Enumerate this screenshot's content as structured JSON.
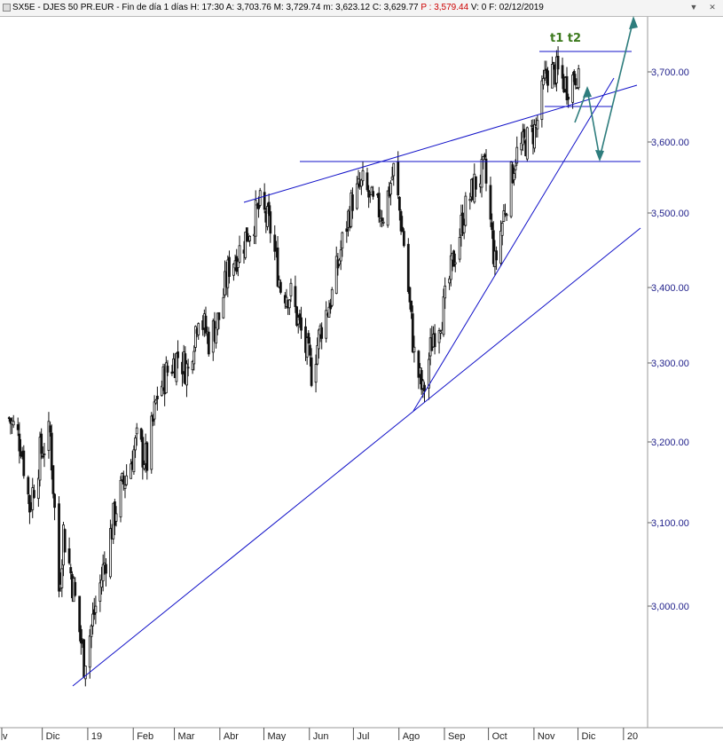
{
  "header": {
    "symbol": "SX5E - DJES 50 PR.EUR - Fin de día 1 días",
    "h_label": "H:",
    "h_value": "17:30",
    "a_label": "A:",
    "a_value": "3,703.76",
    "m_label": "M:",
    "m_value": "3,729.74",
    "min_label": "m:",
    "min_value": "3,623.12",
    "c_label": "C:",
    "c_value": "3,629.77",
    "p_label": "P :",
    "p_value": "3,579.44",
    "v_label": "V:",
    "v_value": "0",
    "f_label": "F:",
    "f_value": "02/12/2019"
  },
  "window_controls": {
    "down_icon": "triangle-down-icon",
    "close_icon": "close-icon"
  },
  "colors": {
    "candle": "#111111",
    "trendline": "#1010c8",
    "projection": "#2e7d7d",
    "price_label": "#1f1f8a",
    "annotation": "#3d7a1e"
  },
  "annotation": {
    "text": "t1 t2"
  },
  "chart_data": {
    "type": "candlestick",
    "title": "",
    "xlabel": "",
    "ylabel": "",
    "x_tick_labels": [
      "v",
      "Dic",
      "19",
      "Feb",
      "Mar",
      "Abr",
      "May",
      "Jun",
      "Jul",
      "Ago",
      "Sep",
      "Oct",
      "Nov",
      "Dic",
      "20"
    ],
    "y_tick_values": [
      3000,
      3100,
      3200,
      3300,
      3400,
      3500,
      3600,
      3700
    ],
    "y_tick_labels": [
      "3,000.00",
      "3,100.00",
      "3,200.00",
      "3,300.00",
      "3,400.00",
      "3,500.00",
      "3,600.00",
      "3,700.00"
    ],
    "ylim": [
      2880,
      3800
    ],
    "grid": false,
    "close_series": [
      [
        "2018-11-06",
        3230
      ],
      [
        "2018-11-14",
        3200
      ],
      [
        "2018-11-20",
        3120
      ],
      [
        "2018-11-27",
        3185
      ],
      [
        "2018-12-04",
        3210
      ],
      [
        "2018-12-10",
        3020
      ],
      [
        "2018-12-13",
        3090
      ],
      [
        "2018-12-20",
        3020
      ],
      [
        "2018-12-27",
        2930
      ],
      [
        "2019-01-04",
        3000
      ],
      [
        "2019-01-11",
        3060
      ],
      [
        "2019-01-18",
        3120
      ],
      [
        "2019-01-25",
        3160
      ],
      [
        "2019-02-01",
        3200
      ],
      [
        "2019-02-08",
        3175
      ],
      [
        "2019-02-15",
        3260
      ],
      [
        "2019-02-22",
        3290
      ],
      [
        "2019-03-01",
        3310
      ],
      [
        "2019-03-08",
        3290
      ],
      [
        "2019-03-15",
        3370
      ],
      [
        "2019-03-22",
        3330
      ],
      [
        "2019-03-29",
        3360
      ],
      [
        "2019-04-05",
        3430
      ],
      [
        "2019-04-12",
        3450
      ],
      [
        "2019-04-19",
        3480
      ],
      [
        "2019-04-26",
        3510
      ],
      [
        "2019-05-03",
        3480
      ],
      [
        "2019-05-10",
        3400
      ],
      [
        "2019-05-17",
        3390
      ],
      [
        "2019-05-24",
        3340
      ],
      [
        "2019-05-31",
        3290
      ],
      [
        "2019-06-07",
        3350
      ],
      [
        "2019-06-14",
        3390
      ],
      [
        "2019-06-21",
        3460
      ],
      [
        "2019-06-28",
        3520
      ],
      [
        "2019-07-05",
        3540
      ],
      [
        "2019-07-12",
        3510
      ],
      [
        "2019-07-19",
        3500
      ],
      [
        "2019-07-26",
        3560
      ],
      [
        "2019-08-02",
        3460
      ],
      [
        "2019-08-09",
        3310
      ],
      [
        "2019-08-15",
        3260
      ],
      [
        "2019-08-22",
        3340
      ],
      [
        "2019-08-29",
        3370
      ],
      [
        "2019-09-05",
        3440
      ],
      [
        "2019-09-12",
        3500
      ],
      [
        "2019-09-19",
        3540
      ],
      [
        "2019-09-26",
        3560
      ],
      [
        "2019-10-03",
        3430
      ],
      [
        "2019-10-10",
        3510
      ],
      [
        "2019-10-17",
        3580
      ],
      [
        "2019-10-24",
        3600
      ],
      [
        "2019-10-31",
        3620
      ],
      [
        "2019-11-07",
        3700
      ],
      [
        "2019-11-14",
        3700
      ],
      [
        "2019-11-21",
        3680
      ],
      [
        "2019-11-28",
        3700
      ],
      [
        "2019-12-02",
        3630
      ]
    ]
  }
}
